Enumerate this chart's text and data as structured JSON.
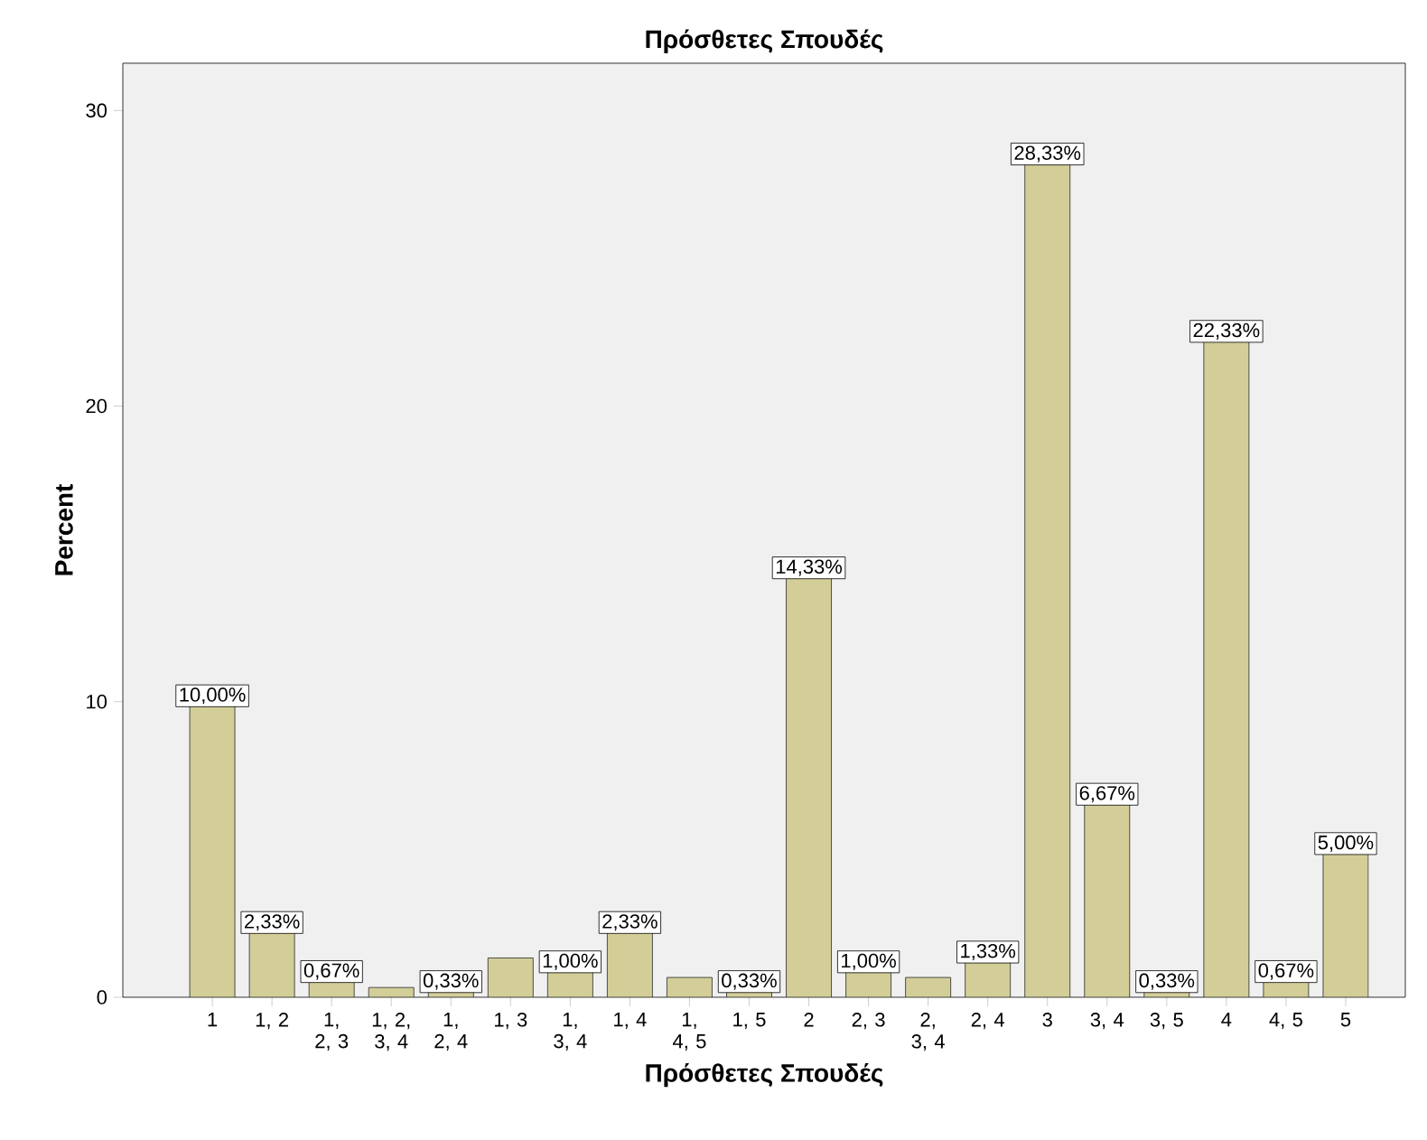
{
  "chart_data": {
    "type": "bar",
    "title": "Πρόσθετες Σπουδές",
    "xlabel": "Πρόσθετες Σπουδές",
    "ylabel": "Percent",
    "categories": [
      "1",
      "1, 2",
      "1, 2, 3",
      "1, 2, 3, 4",
      "1, 2, 4",
      "1, 3",
      "1, 3, 4",
      "1, 4",
      "1, 4, 5",
      "1, 5",
      "2",
      "2, 3",
      "2, 3, 4",
      "2, 4",
      "3",
      "3, 4",
      "3, 5",
      "4",
      "4, 5",
      "5"
    ],
    "values": [
      10.0,
      2.33,
      0.67,
      0.33,
      0.33,
      1.33,
      1.0,
      2.33,
      0.67,
      0.33,
      14.33,
      1.0,
      0.67,
      1.33,
      28.33,
      6.67,
      0.33,
      22.33,
      0.67,
      5.0
    ],
    "value_labels": [
      "10,00%",
      "2,33%",
      "0,67%",
      null,
      "0,33%",
      null,
      "1,00%",
      "2,33%",
      null,
      "0,33%",
      "14,33%",
      "1,00%",
      null,
      "1,33%",
      "28,33%",
      "6,67%",
      "0,33%",
      "22,33%",
      "0,67%",
      "5,00%"
    ],
    "color": "#d3ce98",
    "ylim": [
      0,
      31.6
    ],
    "yticks": [
      0,
      10,
      20,
      30
    ]
  }
}
